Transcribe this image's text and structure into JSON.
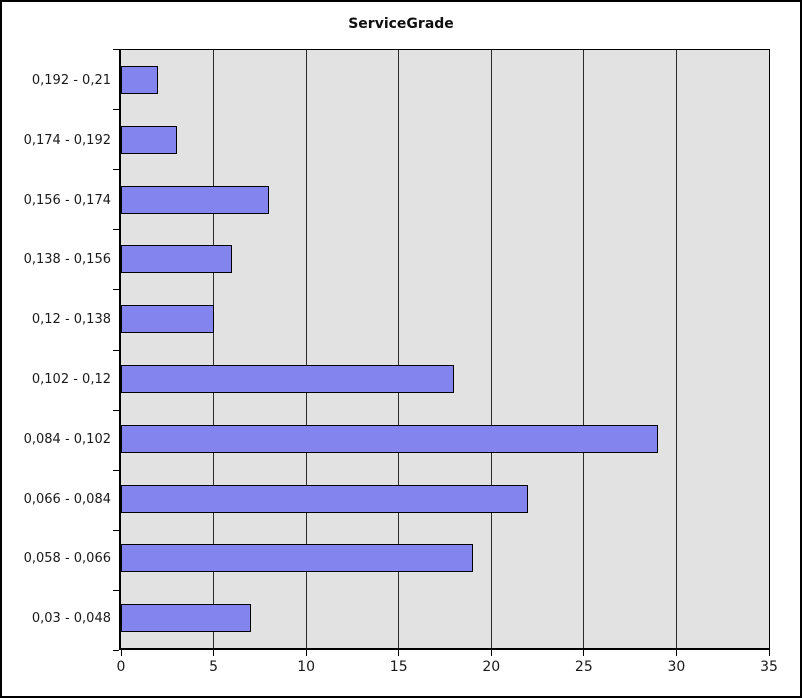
{
  "window": {
    "background": "#FFFFFF",
    "border_color": "#000000"
  },
  "chart_data": {
    "type": "bar",
    "orientation": "horizontal",
    "title": "ServiceGrade",
    "categories": [
      "0,192 - 0,21",
      "0,174 - 0,192",
      "0,156 - 0,174",
      "0,138 - 0,156",
      "0,12 - 0,138",
      "0,102 - 0,12",
      "0,084 - 0,102",
      "0,066 - 0,084",
      "0,058 - 0,066",
      "0,03 - 0,048"
    ],
    "values": [
      2,
      3,
      8,
      6,
      5,
      18,
      29,
      22,
      19,
      7
    ],
    "xlabel": "",
    "ylabel": "",
    "xlim": [
      0,
      35
    ],
    "x_ticks": [
      0,
      5,
      10,
      15,
      20,
      25,
      30,
      35
    ],
    "grid": true,
    "legend": false,
    "colors": {
      "bar_fill": "#8484EE",
      "bar_border": "#000000",
      "plot_background": "#E2E2E2",
      "grid_line": "#2A2A2A",
      "axis_line": "#000000",
      "text": "#1A1A1A"
    }
  }
}
